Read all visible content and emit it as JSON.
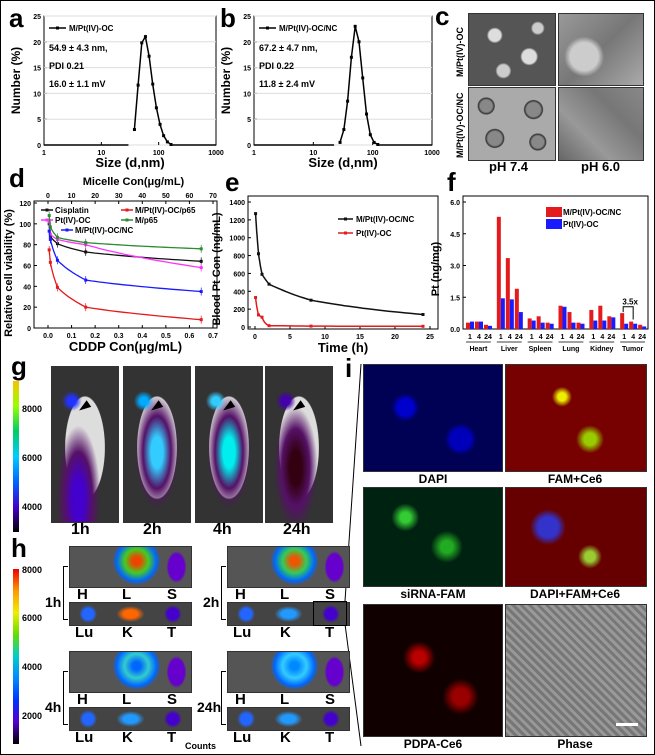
{
  "panel_letters": {
    "a": "a",
    "b": "b",
    "c": "c",
    "d": "d",
    "e": "e",
    "f": "f",
    "g": "g",
    "h": "h",
    "i": "i"
  },
  "colors": {
    "red": "#e41a1c",
    "blue": "#1a1aff",
    "black": "#111111",
    "magenta": "#ff33ff",
    "green": "#2e8b2e"
  },
  "panel_c": {
    "row_labels": [
      "M/Pt(IV)-OC",
      "M/Pt(IV)-OC/NC"
    ],
    "col_labels": [
      "pH 7.4",
      "pH 6.0"
    ]
  },
  "panel_g": {
    "time_labels": [
      "1h",
      "2h",
      "4h",
      "24h"
    ],
    "colorbar_ticks": [
      "8000",
      "6000",
      "4000"
    ]
  },
  "panel_h": {
    "colorbar_ticks": [
      "8000",
      "6000",
      "4000",
      "2000"
    ],
    "colorbar_unit": "Counts",
    "groups": [
      {
        "time": "1h",
        "top": [
          "H",
          "L",
          "S"
        ],
        "bottom": [
          "Lu",
          "K",
          "T"
        ]
      },
      {
        "time": "2h",
        "top": [
          "H",
          "L",
          "S"
        ],
        "bottom": [
          "Lu",
          "K",
          "T"
        ]
      },
      {
        "time": "4h",
        "top": [
          "H",
          "L",
          "S"
        ],
        "bottom": [
          "Lu",
          "K",
          "T"
        ]
      },
      {
        "time": "24h",
        "top": [
          "H",
          "L",
          "S"
        ],
        "bottom": [
          "Lu",
          "K",
          "T"
        ]
      }
    ]
  },
  "panel_i": {
    "labels": [
      "DAPI",
      "FAM+Ce6",
      "siRNA-FAM",
      "DAPI+FAM+Ce6",
      "PDPA-Ce6",
      "Phase"
    ]
  },
  "chart_data": [
    {
      "panel": "a",
      "type": "line",
      "xlabel": "Size (d,nm)",
      "ylabel": "Number (%)",
      "xscale": "log",
      "xlim": [
        1,
        1000
      ],
      "ylim": [
        0,
        25
      ],
      "xticks": [
        "1",
        "10",
        "100",
        "1000"
      ],
      "yticks": [
        "0",
        "5",
        "10",
        "15",
        "20",
        "25"
      ],
      "legend": "top-left",
      "series": [
        {
          "name": "M/Pt(IV)-OC",
          "x": [
            37.8,
            43.8,
            50.7,
            58.8,
            68,
            78.8,
            91.3,
            105.7,
            122,
            142,
            164
          ],
          "y": [
            3,
            11.6,
            19.8,
            21,
            17.2,
            11.8,
            7.2,
            4,
            1.8,
            0.6,
            0.1
          ]
        }
      ],
      "annotations": [
        "54.9 ± 4.3 nm,",
        "PDI 0.21",
        "16.0 ± 1.1 mV"
      ]
    },
    {
      "panel": "b",
      "type": "line",
      "xlabel": "Size (d,nm)",
      "ylabel": "Number (%)",
      "xscale": "log",
      "xlim": [
        1,
        1000
      ],
      "ylim": [
        0,
        25
      ],
      "xticks": [
        "1",
        "10",
        "100",
        "1000"
      ],
      "yticks": [
        "0",
        "5",
        "10",
        "15",
        "20",
        "25"
      ],
      "legend": "top-left",
      "series": [
        {
          "name": "M/Pt(IV)-OC/NC",
          "x": [
            28.2,
            32.7,
            37.8,
            43.8,
            50.7,
            58.8,
            68,
            78.8,
            91.3,
            105.7,
            122
          ],
          "y": [
            0.5,
            3,
            8.5,
            17,
            23,
            20,
            13,
            6,
            2,
            0.5,
            0.1
          ]
        }
      ],
      "annotations": [
        "67.2 ± 4.7 nm,",
        "PDI 0.22",
        "11.8 ± 2.4 mV"
      ]
    },
    {
      "panel": "d",
      "type": "line",
      "xlabel": "CDDP Con(μg/mL)",
      "x2label": "Micelle Con(μg/mL)",
      "ylabel": "Relative cell viability (%)",
      "xlim": [
        0,
        0.7
      ],
      "x2lim": [
        0,
        70
      ],
      "ylim": [
        0,
        120
      ],
      "xticks": [
        "0.0",
        "0.1",
        "0.2",
        "0.3",
        "0.4",
        "0.5",
        "0.6",
        "0.7"
      ],
      "x2ticks": [
        "0",
        "10",
        "20",
        "30",
        "40",
        "50",
        "60",
        "70"
      ],
      "yticks": [
        "0",
        "20",
        "40",
        "60",
        "80",
        "100",
        "120"
      ],
      "legend": "top",
      "x": [
        0.005,
        0.01,
        0.04,
        0.16,
        0.65
      ],
      "series": [
        {
          "name": "Cisplatin",
          "color": "#111111",
          "y": [
            100,
            88,
            81,
            73,
            64
          ]
        },
        {
          "name": "M/Pt(IV)-OC/p65",
          "color": "#e41a1c",
          "y": [
            75,
            63,
            39,
            20,
            8
          ]
        },
        {
          "name": "Pt(IV)-OC",
          "color": "#ff33ff",
          "y": [
            102,
            90,
            85,
            80,
            58
          ]
        },
        {
          "name": "M/p65",
          "color": "#2e8b2e",
          "y": [
            108,
            97,
            87,
            82,
            76
          ]
        },
        {
          "name": "M/Pt(IV)-OC/NC",
          "color": "#1a1aff",
          "y": [
            93,
            85,
            65,
            46,
            35
          ]
        }
      ]
    },
    {
      "panel": "e",
      "type": "line",
      "xlabel": "Time (h)",
      "ylabel": "Blood Pt Con (ng/mL)",
      "xlim": [
        0,
        25
      ],
      "ylim": [
        0,
        1400
      ],
      "xticks": [
        "0",
        "5",
        "10",
        "15",
        "20",
        "25"
      ],
      "yticks": [
        "0",
        "200",
        "400",
        "600",
        "800",
        "1000",
        "1200",
        "1400"
      ],
      "legend": "top-right",
      "x": [
        0.083,
        0.5,
        1,
        2,
        8,
        24
      ],
      "series": [
        {
          "name": "M/Pt(IV)-OC/NC",
          "color": "#111111",
          "y": [
            1270,
            820,
            590,
            480,
            300,
            140
          ]
        },
        {
          "name": "Pt(IV)-OC",
          "color": "#e41a1c",
          "y": [
            330,
            135,
            110,
            15,
            10,
            8
          ]
        }
      ]
    },
    {
      "panel": "f",
      "type": "bar",
      "ylabel": "Pt (ng/mg)",
      "ylim": [
        0,
        6
      ],
      "yticks": [
        "0.0",
        "1.5",
        "3.0",
        "4.5",
        "6.0"
      ],
      "categories": [
        "Heart",
        "Liver",
        "Spleen",
        "Lung",
        "Kidney",
        "Tumor"
      ],
      "subcategories": [
        "1",
        "4",
        "24"
      ],
      "legend": "top-right",
      "annotation": "3.5x",
      "series": [
        {
          "name": "M/Pt(IV)-OC/NC",
          "color": "#e41a1c",
          "values": [
            [
              0.3,
              0.35,
              0.2
            ],
            [
              5.3,
              3.35,
              1.9
            ],
            [
              0.5,
              0.6,
              0.3
            ],
            [
              1.1,
              0.8,
              0.3
            ],
            [
              0.9,
              1.1,
              0.6
            ],
            [
              0.75,
              0.35,
              0.2
            ]
          ]
        },
        {
          "name": "Pt(IV)-OC",
          "color": "#1a1aff",
          "values": [
            [
              0.35,
              0.35,
              0.15
            ],
            [
              1.45,
              1.4,
              0.8
            ],
            [
              0.4,
              0.3,
              0.25
            ],
            [
              1.05,
              0.3,
              0.25
            ],
            [
              0.4,
              0.4,
              0.55
            ],
            [
              0.25,
              0.25,
              0.12
            ]
          ]
        }
      ]
    }
  ]
}
